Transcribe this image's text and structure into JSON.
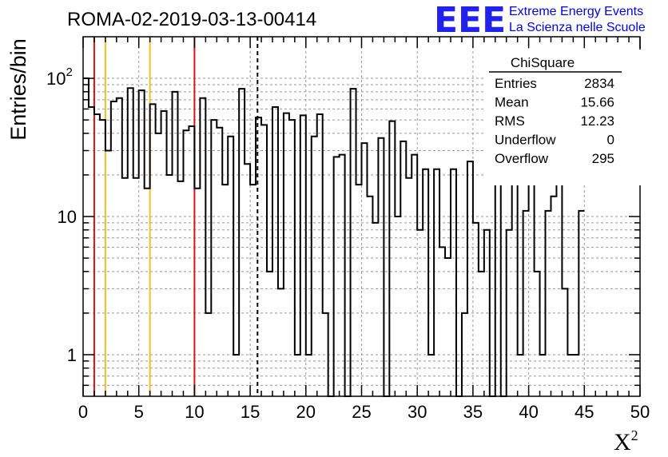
{
  "chart_data": {
    "type": "bar",
    "title": "ROMA-02-2019-03-13-00414",
    "ylabel": "Entries/bin",
    "xlabel": "X",
    "xlabel_sup": "2",
    "x_range": [
      0,
      50
    ],
    "y_range": [
      0.5,
      200
    ],
    "y_scale": "log",
    "grid": true,
    "bin_width": 0.5,
    "x_ticks": [
      "0",
      "5",
      "10",
      "15",
      "20",
      "25",
      "30",
      "35",
      "40",
      "45",
      "50"
    ],
    "y_ticks": [
      {
        "value": 1,
        "label": "1"
      },
      {
        "value": 10,
        "label": "10"
      },
      {
        "value": 100,
        "label": "10",
        "sup": "2"
      }
    ],
    "values": [
      100,
      62,
      55,
      50,
      30,
      68,
      72,
      19,
      85,
      19,
      82,
      16,
      65,
      40,
      58,
      20,
      80,
      18,
      42,
      45,
      16,
      72,
      2,
      50,
      44,
      17,
      38,
      1,
      84,
      24,
      17,
      52,
      46,
      4,
      62,
      3,
      56,
      50,
      1,
      54,
      1,
      38,
      55,
      2,
      0,
      27,
      28,
      0,
      84,
      17,
      34,
      14,
      9,
      37,
      0,
      49,
      10,
      35,
      19,
      28,
      8,
      22,
      1,
      22,
      6,
      5,
      22,
      0,
      2,
      25,
      9,
      4,
      8,
      0,
      19,
      0,
      8,
      25,
      1,
      11,
      25,
      4,
      1,
      11,
      14,
      22,
      3,
      1,
      1,
      11
    ],
    "vertical_lines": [
      {
        "x": 1,
        "color": "#dd1111",
        "style": "solid"
      },
      {
        "x": 2,
        "color": "#f0c020",
        "style": "solid"
      },
      {
        "x": 6,
        "color": "#f0c020",
        "style": "solid"
      },
      {
        "x": 10,
        "color": "#dd1111",
        "style": "solid"
      },
      {
        "x": 15.66,
        "color": "#000000",
        "style": "dashed"
      }
    ],
    "stats_box": {
      "title": "ChiSquare",
      "rows": [
        {
          "label": "Entries",
          "value": "2834"
        },
        {
          "label": "Mean",
          "value": "15.66"
        },
        {
          "label": "RMS",
          "value": "12.23"
        },
        {
          "label": "Underflow",
          "value": "0"
        },
        {
          "label": "Overflow",
          "value": "295"
        }
      ]
    }
  },
  "logo": {
    "letters": "EEE",
    "line1": "Extreme Energy Events",
    "line2": "La Scienza nelle Scuole"
  },
  "colors": {
    "logo": "#2222ee",
    "grid": "#999999",
    "red_line": "#dd1111",
    "yellow_line": "#f0c020"
  }
}
